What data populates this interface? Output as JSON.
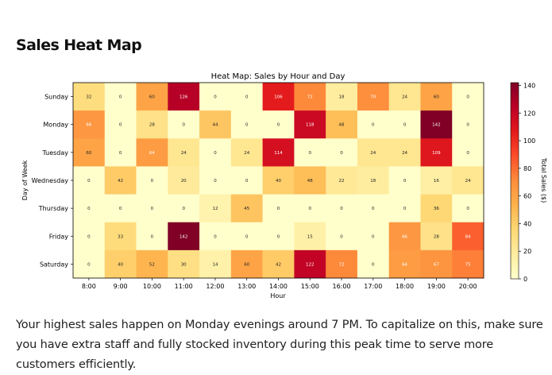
{
  "page": {
    "title": "Sales Heat Map",
    "summary": "Your highest sales happen on Monday evenings around 7 PM. To capitalize on this, make sure you have extra staff and fully stocked inventory during this peak time to serve more customers efficiently."
  },
  "chart_data": {
    "type": "heatmap",
    "title": "Heat Map: Sales by Hour and Day",
    "xlabel": "Hour",
    "ylabel": "Day of Week",
    "colorbar_label": "Total Sales ($)",
    "colormap": "YlOrRd",
    "vmin": 0,
    "vmax": 142,
    "colorbar_ticks": [
      0,
      20,
      40,
      60,
      80,
      100,
      120,
      140
    ],
    "hours": [
      "8:00",
      "9:00",
      "10:00",
      "11:00",
      "12:00",
      "13:00",
      "14:00",
      "15:00",
      "16:00",
      "17:00",
      "18:00",
      "19:00",
      "20:00"
    ],
    "days": [
      "Sunday",
      "Monday",
      "Tuesday",
      "Wednesday",
      "Thursday",
      "Friday",
      "Saturday"
    ],
    "values": [
      [
        32,
        0,
        60,
        126,
        0,
        0,
        106,
        72,
        18,
        70,
        24,
        60,
        0
      ],
      [
        66,
        0,
        28,
        0,
        44,
        0,
        0,
        118,
        48,
        0,
        0,
        142,
        0
      ],
      [
        60,
        0,
        64,
        24,
        0,
        24,
        114,
        0,
        0,
        24,
        24,
        109,
        0
      ],
      [
        0,
        42,
        0,
        20,
        0,
        0,
        40,
        48,
        22,
        18,
        0,
        16,
        24
      ],
      [
        0,
        0,
        0,
        0,
        12,
        45,
        0,
        0,
        0,
        0,
        0,
        36,
        0
      ],
      [
        0,
        33,
        0,
        142,
        0,
        0,
        0,
        15,
        0,
        0,
        66,
        28,
        84
      ],
      [
        0,
        40,
        52,
        30,
        14,
        60,
        42,
        122,
        72,
        0,
        64,
        67,
        75
      ]
    ]
  }
}
